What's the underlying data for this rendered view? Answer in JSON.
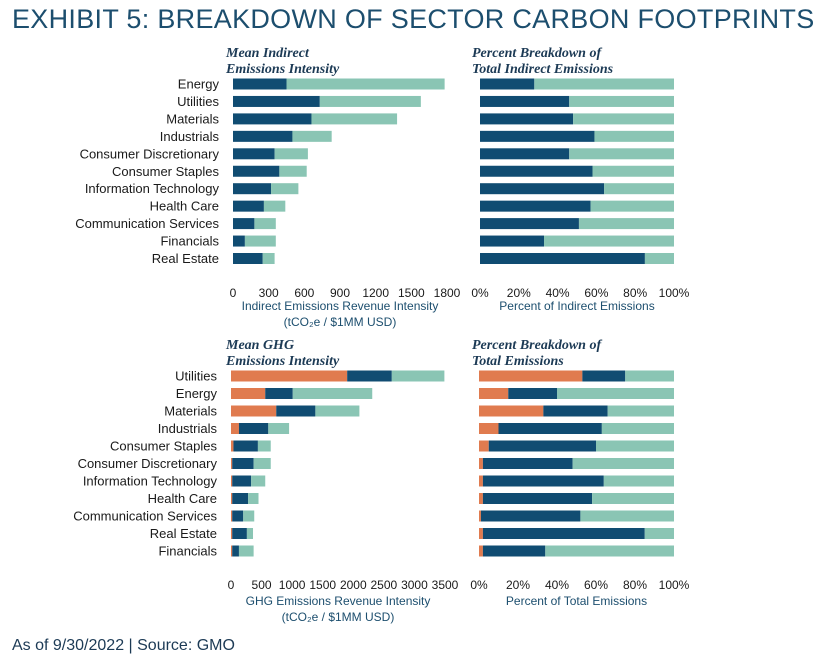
{
  "title": "EXHIBIT 5: BREAKDOWN OF SECTOR CARBON FOOTPRINTS",
  "footer": "As of 9/30/2022 | Source: GMO",
  "colors": {
    "scope1": "#e07b4f",
    "dark": "#104c72",
    "light": "#8ac5b4"
  },
  "chart_data": [
    {
      "type": "bar",
      "orientation": "horizontal",
      "stacked": true,
      "title_lines": [
        "Mean Indirect",
        "Emissions Intensity"
      ],
      "xlabel_lines": [
        "Indirect Emissions Revenue Intensity",
        "(tCO₂e / $1MM USD)"
      ],
      "categories": [
        "Energy",
        "Utilities",
        "Materials",
        "Industrials",
        "Consumer Discretionary",
        "Consumer Staples",
        "Information Technology",
        "Health Care",
        "Communication Services",
        "Financials",
        "Real Estate"
      ],
      "series": [
        {
          "values": [
            450,
            730,
            660,
            500,
            350,
            390,
            320,
            260,
            180,
            100,
            250
          ]
        },
        {
          "values": [
            1330,
            850,
            720,
            330,
            280,
            230,
            230,
            180,
            180,
            260,
            100
          ]
        }
      ],
      "xlim": [
        0,
        1800
      ],
      "ticks": [
        "0",
        "300",
        "600",
        "900",
        "1200",
        "1500",
        "1800"
      ]
    },
    {
      "type": "bar",
      "orientation": "horizontal",
      "stacked": true,
      "title_lines": [
        "Percent Breakdown of",
        "Total Indirect Emissions"
      ],
      "xlabel_lines": [
        "Percent of Indirect Emissions"
      ],
      "categories": [
        "Energy",
        "Utilities",
        "Materials",
        "Industrials",
        "Consumer Discretionary",
        "Consumer Staples",
        "Information Technology",
        "Health Care",
        "Communication Services",
        "Financials",
        "Real Estate"
      ],
      "series": [
        {
          "values": [
            28,
            46,
            48,
            59,
            46,
            58,
            64,
            57,
            51,
            33,
            85
          ]
        },
        {
          "values": [
            72,
            54,
            52,
            41,
            54,
            42,
            36,
            43,
            49,
            67,
            15
          ]
        }
      ],
      "xlim": [
        0,
        100
      ],
      "ticks": [
        "0%",
        "20%",
        "40%",
        "60%",
        "80%",
        "100%"
      ]
    },
    {
      "type": "bar",
      "orientation": "horizontal",
      "stacked": true,
      "title_lines": [
        "Mean GHG",
        "Emissions Intensity"
      ],
      "xlabel_lines": [
        "GHG Emissions Revenue Intensity",
        "(tCO₂e / $1MM USD)"
      ],
      "categories": [
        "Utilities",
        "Energy",
        "Materials",
        "Industrials",
        "Consumer Staples",
        "Consumer Discretionary",
        "Information Technology",
        "Health Care",
        "Communication Services",
        "Real Estate",
        "Financials"
      ],
      "series": [
        {
          "values": [
            1900,
            560,
            740,
            130,
            40,
            20,
            20,
            20,
            20,
            20,
            20
          ]
        },
        {
          "values": [
            730,
            450,
            640,
            480,
            400,
            350,
            310,
            260,
            180,
            240,
            110
          ]
        },
        {
          "values": [
            860,
            1300,
            720,
            340,
            210,
            280,
            230,
            170,
            180,
            100,
            240
          ]
        }
      ],
      "xlim": [
        0,
        3500
      ],
      "ticks": [
        "0",
        "500",
        "1000",
        "1500",
        "2000",
        "2500",
        "3000",
        "3500"
      ]
    },
    {
      "type": "bar",
      "orientation": "horizontal",
      "stacked": true,
      "title_lines": [
        "Percent Breakdown of",
        "Total Emissions"
      ],
      "xlabel_lines": [
        "Percent of Total Emissions"
      ],
      "categories": [
        "Utilities",
        "Energy",
        "Materials",
        "Industrials",
        "Consumer Staples",
        "Consumer Discretionary",
        "Information Technology",
        "Health Care",
        "Communication Services",
        "Real Estate",
        "Financials"
      ],
      "series": [
        {
          "values": [
            53,
            15,
            33,
            10,
            5,
            2,
            2,
            2,
            1,
            2,
            2
          ]
        },
        {
          "values": [
            22,
            25,
            33,
            53,
            55,
            46,
            62,
            56,
            51,
            83,
            32
          ]
        },
        {
          "values": [
            25,
            60,
            34,
            37,
            40,
            52,
            36,
            42,
            48,
            15,
            66
          ]
        }
      ],
      "xlim": [
        0,
        100
      ],
      "ticks": [
        "0%",
        "20%",
        "40%",
        "60%",
        "80%",
        "100%"
      ]
    }
  ]
}
